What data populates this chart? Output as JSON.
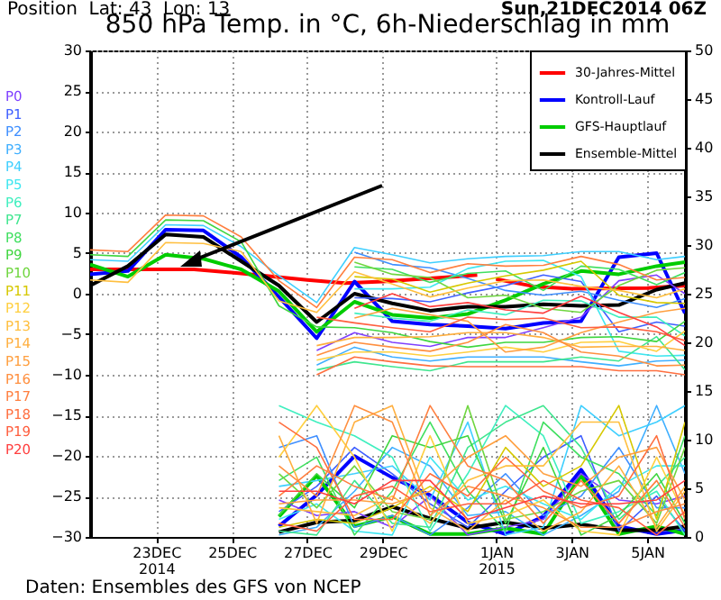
{
  "chart_data": {
    "type": "line",
    "title": "850 hPa Temp. in °C, 6h-Niederschlag in mm",
    "annotations": [
      "Position  Lat: 43  Lon: 13",
      "Sun,21DEC2014 06Z",
      "Daten: Ensembles des GFS von NCEP"
    ],
    "x": [
      "2014-12-21T06:00",
      "2014-12-22T06:00",
      "2014-12-23T06:00",
      "2014-12-24T06:00",
      "2014-12-25T06:00",
      "2014-12-26T06:00",
      "2014-12-27T06:00",
      "2014-12-28T06:00",
      "2014-12-29T06:00",
      "2014-12-30T06:00",
      "2014-12-31T06:00",
      "2015-01-01T06:00",
      "2015-01-02T06:00",
      "2015-01-03T06:00",
      "2015-01-04T06:00",
      "2015-01-05T06:00",
      "2015-01-06T00:00"
    ],
    "xlim": [
      "2014-12-21T06:00",
      "2015-01-06T00:00"
    ],
    "xticks": [
      {
        "value": "2014-12-23",
        "label": "23DEC\n2014"
      },
      {
        "value": "2014-12-25",
        "label": "25DEC"
      },
      {
        "value": "2014-12-27",
        "label": "27DEC"
      },
      {
        "value": "2014-12-29",
        "label": "29DEC"
      },
      {
        "value": "2015-01-01",
        "label": "1JAN\n2015"
      },
      {
        "value": "2015-01-03",
        "label": "3JAN"
      },
      {
        "value": "2015-01-05",
        "label": "5JAN"
      }
    ],
    "ylim": [
      -30,
      30
    ],
    "yticks": [
      -30,
      -25,
      -20,
      -15,
      -10,
      -5,
      0,
      5,
      10,
      15,
      20,
      25,
      30
    ],
    "y2lim": [
      0,
      50
    ],
    "y2ticks": [
      0,
      5,
      10,
      15,
      20,
      25,
      30,
      35,
      40,
      45,
      50
    ],
    "grid": true,
    "legend": "top right",
    "series": [
      {
        "name": "P0",
        "color": "#7f3fff",
        "values": [
          null,
          null,
          null,
          null,
          null,
          null,
          -7.0,
          -4.8,
          -6.0,
          -6.5,
          -5.4,
          -5.4,
          -4.2,
          -2.9,
          1.6,
          2.3,
          0.0
        ]
      },
      {
        "name": "P1",
        "color": "#3f5fff",
        "values": [
          null,
          null,
          null,
          null,
          null,
          null,
          null,
          -0.5,
          -0.6,
          -1.0,
          0.1,
          1.0,
          2.3,
          1.5,
          -4.7,
          -3.5,
          -4.0
        ]
      },
      {
        "name": "P2",
        "color": "#3f8fff",
        "values": [
          null,
          null,
          null,
          null,
          null,
          null,
          null,
          5.1,
          3.6,
          3.2,
          1.9,
          0.4,
          -0.2,
          0.3,
          -0.8,
          -1.7,
          -0.6
        ]
      },
      {
        "name": "P3",
        "color": "#3fafff",
        "values": [
          null,
          null,
          null,
          null,
          null,
          null,
          -8.8,
          -6.6,
          -7.8,
          -8.3,
          -7.8,
          -7.8,
          -7.8,
          -8.4,
          -8.9,
          -8.3,
          -8.2
        ]
      },
      {
        "name": "P4",
        "color": "#3fcfff",
        "values": [
          4.2,
          4.0,
          8.5,
          8.4,
          5.8,
          2.2,
          -1.1,
          5.7,
          4.8,
          3.8,
          4.3,
          4.6,
          4.7,
          5.2,
          5.2,
          4.2,
          4.6
        ]
      },
      {
        "name": "P5",
        "color": "#3fe6f0",
        "values": [
          null,
          null,
          null,
          null,
          null,
          null,
          null,
          0.6,
          0.6,
          0.8,
          3.1,
          4.0,
          4.1,
          2.1,
          -7.1,
          -7.7,
          -7.6
        ]
      },
      {
        "name": "P6",
        "color": "#3fefbf",
        "values": [
          null,
          null,
          null,
          null,
          null,
          null,
          null,
          -2.4,
          -3.0,
          -3.4,
          -2.0,
          -2.6,
          -0.8,
          -0.9,
          -2.9,
          -2.9,
          -5.2
        ]
      },
      {
        "name": "P7",
        "color": "#3fe68f",
        "values": [
          null,
          null,
          null,
          null,
          null,
          null,
          -9.4,
          -8.4,
          -9.0,
          -9.5,
          -8.4,
          -8.4,
          -8.4,
          -7.8,
          -8.3,
          -5.3,
          -9.4
        ]
      },
      {
        "name": "P8",
        "color": "#3fdf5f",
        "values": [
          null,
          null,
          null,
          null,
          null,
          null,
          null,
          3.3,
          3.0,
          1.4,
          2.5,
          2.8,
          0.4,
          3.4,
          3.0,
          1.1,
          2.6
        ]
      },
      {
        "name": "P9",
        "color": "#3fd63f",
        "values": [
          4.8,
          4.6,
          9.1,
          9.0,
          6.4,
          -1.5,
          -4.1,
          -4.2,
          -4.8,
          -5.9,
          -6.6,
          -6.0,
          -6.0,
          -5.4,
          -5.3,
          -5.9,
          -3.4
        ]
      },
      {
        "name": "P10",
        "color": "#6fd63f",
        "values": [
          null,
          null,
          null,
          null,
          null,
          null,
          null,
          3.9,
          2.4,
          2.0,
          -0.5,
          -0.2,
          -1.8,
          -2.3,
          1.0,
          2.9,
          3.2
        ]
      },
      {
        "name": "P11",
        "color": "#d6c800",
        "values": [
          null,
          null,
          null,
          null,
          null,
          null,
          null,
          2.1,
          1.8,
          0.2,
          1.3,
          2.2,
          2.9,
          4.0,
          -0.2,
          -1.1,
          -1.2
        ]
      },
      {
        "name": "P12",
        "color": "#ffcf3f",
        "values": [
          null,
          null,
          null,
          null,
          null,
          null,
          -8.2,
          -7.2,
          -7.2,
          -7.7,
          -7.2,
          -6.6,
          -7.2,
          -6.0,
          -5.9,
          -7.1,
          -4.6
        ]
      },
      {
        "name": "P13",
        "color": "#ffbf3f",
        "values": [
          1.7,
          1.4,
          6.3,
          6.2,
          5.2,
          -0.9,
          -2.3,
          2.7,
          1.2,
          -0.4,
          0.7,
          1.6,
          1.7,
          0.9,
          0.4,
          -0.5,
          0.6
        ]
      },
      {
        "name": "P14",
        "color": "#ffaf3f",
        "values": [
          null,
          null,
          null,
          null,
          null,
          null,
          -6.4,
          -5.4,
          -5.4,
          -5.3,
          -4.8,
          -4.8,
          -5.4,
          -6.6,
          -6.5,
          -6.5,
          -7.0
        ]
      },
      {
        "name": "P15",
        "color": "#ff9f3f",
        "values": [
          null,
          null,
          null,
          null,
          null,
          null,
          null,
          -3.0,
          -1.8,
          -2.6,
          -3.4,
          -7.2,
          -6.6,
          -4.8,
          -3.5,
          -2.3,
          -1.8
        ]
      },
      {
        "name": "P16",
        "color": "#ff8f3f",
        "values": [
          null,
          null,
          null,
          null,
          null,
          null,
          -7.6,
          -6.0,
          -6.6,
          -7.1,
          -6.0,
          -3.8,
          -4.8,
          -7.2,
          -7.7,
          -8.9,
          -8.8
        ]
      },
      {
        "name": "P17",
        "color": "#ff7f3f",
        "values": [
          5.4,
          5.2,
          9.7,
          9.6,
          7.0,
          1.6,
          -1.7,
          4.5,
          4.2,
          2.6,
          3.7,
          3.4,
          3.5,
          4.6,
          3.6,
          1.7,
          2.0
        ]
      },
      {
        "name": "P18",
        "color": "#ff6f3f",
        "values": [
          null,
          null,
          null,
          null,
          null,
          null,
          -10.0,
          -7.8,
          -8.4,
          -8.9,
          -9.0,
          -9.0,
          -9.0,
          -9.0,
          -9.5,
          -9.5,
          -10.0
        ]
      },
      {
        "name": "P19",
        "color": "#ff5f3f",
        "values": [
          null,
          null,
          null,
          null,
          null,
          null,
          -2.9,
          -3.6,
          -4.2,
          -4.7,
          -2.9,
          -3.2,
          -3.0,
          -4.2,
          -4.1,
          -4.7,
          -5.8
        ]
      },
      {
        "name": "P20",
        "color": "#ff3f3f",
        "values": [
          null,
          null,
          null,
          null,
          null,
          null,
          null,
          -1.8,
          0.0,
          -1.6,
          -1.1,
          -2.0,
          -2.4,
          -0.3,
          -2.3,
          -4.1,
          -6.4
        ]
      },
      {
        "color": "#7f3fff",
        "axis": "y2",
        "values": [
          null,
          null,
          null,
          null,
          null,
          3.8,
          2.2,
          2.6,
          1.0,
          4.2,
          0.2,
          1.0,
          1.8,
          6.5,
          3.8,
          3.4,
          4.2
        ]
      },
      {
        "color": "#3f5fff",
        "axis": "y2",
        "values": [
          null,
          null,
          null,
          null,
          null,
          2.6,
          5.2,
          9.2,
          6.5,
          3.4,
          1.0,
          4.7,
          8.2,
          10.4,
          0.6,
          4.2,
          0.6
        ]
      },
      {
        "color": "#3f8fff",
        "axis": "y2",
        "values": [
          null,
          null,
          null,
          null,
          null,
          9.2,
          10.4,
          1.0,
          2.2,
          0.2,
          3.0,
          6.5,
          2.2,
          4.2,
          9.2,
          3.0,
          3.0
        ]
      },
      {
        "color": "#3fafff",
        "axis": "y2",
        "values": [
          null,
          null,
          null,
          null,
          null,
          0.2,
          1.0,
          4.7,
          9.2,
          7.3,
          2.2,
          2.6,
          0.2,
          2.2,
          4.7,
          13.5,
          6.5
        ]
      },
      {
        "color": "#3fcfff",
        "axis": "y2",
        "values": [
          null,
          null,
          null,
          null,
          null,
          5.2,
          5.8,
          6.5,
          7.3,
          3.8,
          11.8,
          0.2,
          1.0,
          13.5,
          10.4,
          11.8,
          13.5
        ]
      },
      {
        "color": "#3fe6f0",
        "axis": "y2",
        "values": [
          null,
          null,
          null,
          null,
          null,
          1.8,
          3.4,
          0.6,
          0.2,
          8.2,
          3.8,
          5.2,
          3.4,
          1.8,
          5.2,
          7.3,
          7.3
        ]
      },
      {
        "color": "#3fefbf",
        "axis": "y2",
        "values": [
          null,
          null,
          null,
          null,
          null,
          13.5,
          11.8,
          10.4,
          8.2,
          0.6,
          6.5,
          13.5,
          10.4,
          1.4,
          2.6,
          4.7,
          0.2
        ]
      },
      {
        "color": "#3fe68f",
        "axis": "y2",
        "values": [
          null,
          null,
          null,
          null,
          null,
          0.6,
          0.2,
          5.8,
          1.4,
          1.0,
          9.2,
          11.8,
          13.5,
          9.2,
          1.8,
          5.2,
          8.2
        ]
      },
      {
        "color": "#3fdf5f",
        "axis": "y2",
        "values": [
          null,
          null,
          null,
          null,
          null,
          5.8,
          8.2,
          0.2,
          4.7,
          11.8,
          4.7,
          0.6,
          11.8,
          8.2,
          6.5,
          2.2,
          10.4
        ]
      },
      {
        "color": "#3fd63f",
        "axis": "y2",
        "values": [
          null,
          null,
          null,
          null,
          null,
          2.2,
          6.5,
          3.0,
          10.4,
          9.2,
          10.4,
          1.4,
          9.2,
          0.2,
          2.2,
          6.5,
          1.4
        ]
      },
      {
        "color": "#6fd63f",
        "axis": "y2",
        "values": [
          null,
          null,
          null,
          null,
          null,
          6.5,
          3.0,
          7.3,
          2.6,
          1.8,
          13.5,
          1.8,
          2.6,
          4.7,
          5.8,
          1.4,
          9.2
        ]
      },
      {
        "color": "#d6c800",
        "axis": "y2",
        "values": [
          null,
          null,
          null,
          null,
          null,
          1.0,
          1.8,
          1.4,
          3.0,
          5.2,
          2.6,
          9.2,
          5.2,
          7.3,
          13.5,
          1.8,
          11.8
        ]
      },
      {
        "color": "#ffcf3f",
        "axis": "y2",
        "values": [
          null,
          null,
          null,
          null,
          null,
          8.2,
          13.5,
          8.2,
          0.6,
          10.4,
          1.4,
          2.2,
          3.8,
          0.6,
          0.2,
          8.2,
          2.2
        ]
      },
      {
        "color": "#ffbf3f",
        "axis": "y2",
        "values": [
          null,
          null,
          null,
          null,
          null,
          3.0,
          2.6,
          2.2,
          4.2,
          1.4,
          5.8,
          7.3,
          7.3,
          11.8,
          11.8,
          0.6,
          4.7
        ]
      },
      {
        "color": "#ffaf3f",
        "axis": "y2",
        "values": [
          null,
          null,
          null,
          null,
          null,
          10.4,
          1.4,
          11.8,
          13.5,
          3.0,
          0.6,
          3.8,
          0.6,
          2.6,
          7.3,
          1.0,
          5.2
        ]
      },
      {
        "color": "#ff9f3f",
        "axis": "y2",
        "values": [
          null,
          null,
          null,
          null,
          null,
          3.4,
          3.8,
          3.8,
          3.4,
          4.7,
          8.2,
          10.4,
          6.5,
          5.2,
          8.2,
          9.2,
          3.8
        ]
      },
      {
        "color": "#ff8f3f",
        "axis": "y2",
        "values": [
          null,
          null,
          null,
          null,
          null,
          7.3,
          4.2,
          13.5,
          11.8,
          2.2,
          5.2,
          4.2,
          3.0,
          1.0,
          1.0,
          2.6,
          3.4
        ]
      },
      {
        "color": "#ff7f3f",
        "axis": "y2",
        "values": [
          null,
          null,
          null,
          null,
          null,
          4.2,
          7.3,
          5.2,
          3.8,
          13.5,
          7.3,
          5.8,
          1.4,
          5.8,
          1.4,
          5.8,
          1.0
        ]
      },
      {
        "color": "#ff6f3f",
        "axis": "y2",
        "values": [
          null,
          null,
          null,
          null,
          null,
          11.8,
          9.2,
          1.8,
          1.8,
          6.5,
          4.2,
          8.2,
          4.7,
          3.0,
          4.2,
          10.4,
          1.8
        ]
      },
      {
        "color": "#ff5f3f",
        "axis": "y2",
        "values": [
          null,
          null,
          null,
          null,
          null,
          1.4,
          0.6,
          4.2,
          5.2,
          2.6,
          3.4,
          3.4,
          5.8,
          3.8,
          3.0,
          0.2,
          2.6
        ]
      },
      {
        "color": "#ff3f3f",
        "axis": "y2",
        "values": [
          null,
          null,
          null,
          null,
          null,
          4.7,
          4.7,
          3.4,
          5.8,
          5.8,
          1.8,
          3.0,
          4.2,
          3.4,
          3.4,
          3.8,
          5.8
        ]
      },
      {
        "name": "30-Jahres-Mittel",
        "color": "#ff0000",
        "x": [
          "2014-12-21T06:00",
          "2014-12-24T00:00",
          "2014-12-25T12:00",
          "2014-12-27T00:00",
          "2014-12-28T00:00",
          "2014-12-29T00:00",
          "2014-12-31T12:00",
          "2014-12-31T18:00",
          "2015-01-01T00:00",
          "2015-01-02T00:00",
          "2015-01-03T00:00",
          "2015-01-05T00:00",
          "2015-01-06T00:00"
        ],
        "values": [
          3.0,
          3.0,
          2.4,
          1.7,
          1.3,
          1.5,
          2.3,
          null,
          1.8,
          0.9,
          0.6,
          0.7,
          1.0
        ]
      },
      {
        "name": "Kontroll-Lauf",
        "color": "#0000ff",
        "values": [
          2.4,
          2.8,
          7.9,
          7.8,
          4.5,
          -0.4,
          -5.5,
          1.5,
          -3.4,
          -3.8,
          -4.0,
          -4.3,
          -3.6,
          -3.4,
          4.5,
          5.0,
          -2.4
        ]
      },
      {
        "name": "GFS-Hauptlauf",
        "color": "#00cc00",
        "values": [
          3.6,
          2.1,
          4.8,
          4.3,
          3.0,
          0.3,
          -4.7,
          -1.0,
          -2.6,
          -3.0,
          -2.5,
          -0.8,
          1.2,
          2.8,
          2.4,
          3.4,
          3.9
        ]
      },
      {
        "name": "Ensemble-Mittel",
        "color": "#000000",
        "values": [
          1.0,
          3.4,
          7.3,
          7.0,
          4.0,
          1.0,
          -3.5,
          0.0,
          -1.2,
          -2.1,
          -1.6,
          -1.6,
          -1.3,
          -1.5,
          -1.4,
          0.5,
          1.3
        ]
      },
      {
        "color": "#0000ff",
        "axis": "y2",
        "values": [
          null,
          null,
          null,
          null,
          null,
          1.1,
          4.3,
          8.3,
          6.1,
          4.3,
          1.5,
          0.3,
          2.1,
          6.9,
          1.1,
          0.3,
          0.7
        ]
      },
      {
        "color": "#00cc00",
        "axis": "y2",
        "values": [
          null,
          null,
          null,
          null,
          null,
          2.1,
          6.3,
          1.1,
          2.1,
          0.3,
          0.3,
          0.9,
          0.3,
          6.3,
          0.3,
          1.1,
          0.3
        ]
      },
      {
        "color": "#000000",
        "axis": "y2",
        "values": [
          null,
          null,
          null,
          null,
          null,
          0.5,
          1.5,
          1.7,
          3.1,
          1.9,
          0.9,
          1.5,
          0.9,
          1.3,
          0.7,
          0.7,
          1.1
        ]
      }
    ]
  }
}
